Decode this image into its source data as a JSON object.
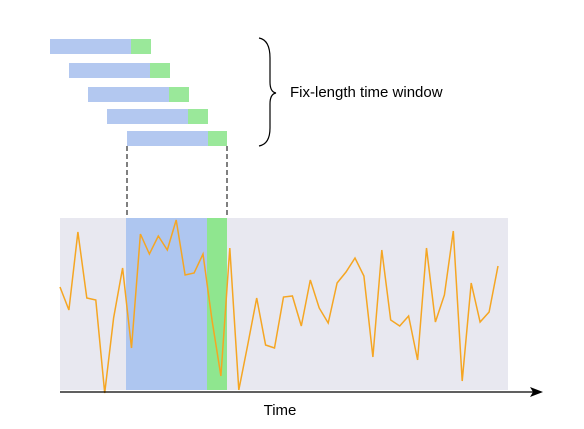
{
  "annotation": "Fix-length time window",
  "axis_label": "Time",
  "signal": {
    "color": "#f5a623",
    "values": [
      103,
      80,
      158,
      92,
      90,
      -3,
      72,
      122,
      42,
      156,
      136,
      154,
      140,
      170,
      115,
      117,
      136,
      70,
      14,
      142,
      0,
      45,
      92,
      45,
      42,
      93,
      94,
      64,
      110,
      82,
      67,
      107,
      118,
      132,
      114,
      33,
      140,
      70,
      64,
      74,
      30,
      142,
      68,
      95,
      159,
      9,
      107,
      68,
      78,
      124
    ]
  }
}
